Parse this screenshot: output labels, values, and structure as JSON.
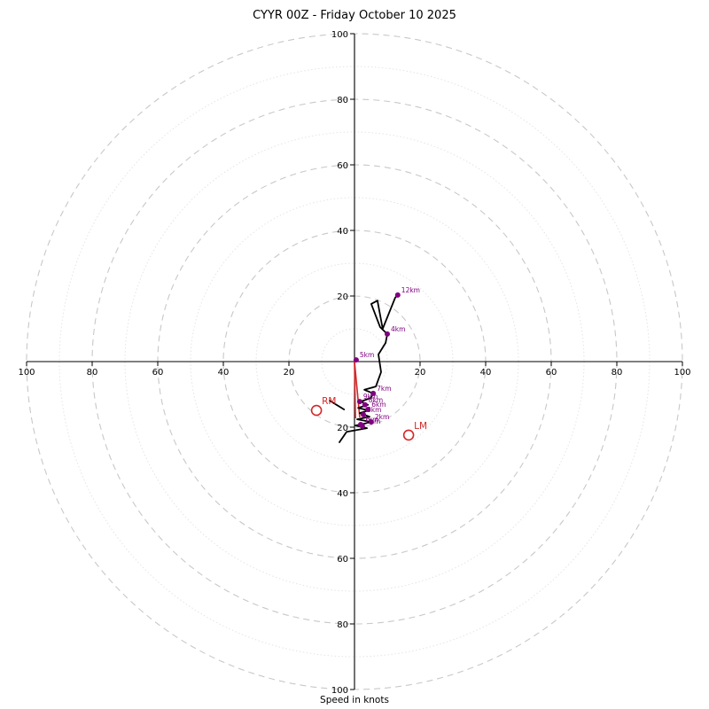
{
  "figure": {
    "title": "CYYR 00Z - Friday October 10 2025",
    "xlabel": "Speed in knots"
  },
  "chart_data": {
    "type": "line",
    "subtype": "hodograph",
    "units": "knots",
    "axis_ticks": [
      20,
      40,
      60,
      80,
      100
    ],
    "dashed_rings": [
      20,
      40,
      60,
      80,
      100
    ],
    "dotted_rings": [
      10,
      30,
      50,
      70,
      90
    ],
    "axis_range": [
      -100,
      100
    ],
    "colors": {
      "trace": "#000000",
      "altitude_marker": "#800080",
      "storm": "#d62728",
      "ring_dashed": "#c8c8c8",
      "ring_dotted": "#e4e4e4",
      "axis": "#000000"
    },
    "trace_uv": [
      [
        -4.6,
        -24.6
      ],
      [
        -2.4,
        -21.4
      ],
      [
        3.8,
        -20.3
      ],
      [
        0.3,
        -19.5
      ],
      [
        1.9,
        -19.2
      ],
      [
        5.1,
        -18.4
      ],
      [
        0.8,
        -17.6
      ],
      [
        4.6,
        -16.8
      ],
      [
        1.6,
        -15.7
      ],
      [
        4.3,
        -14.9
      ],
      [
        1.1,
        -14.1
      ],
      [
        4.1,
        -13.2
      ],
      [
        1.9,
        -12.2
      ],
      [
        4.9,
        -11.1
      ],
      [
        5.7,
        -9.7
      ],
      [
        3.0,
        -8.6
      ],
      [
        6.5,
        -7.6
      ],
      [
        8.1,
        -3.2
      ],
      [
        7.3,
        2.2
      ],
      [
        9.5,
        5.7
      ],
      [
        10.0,
        8.4
      ],
      [
        7.8,
        10.5
      ],
      [
        5.1,
        17.6
      ],
      [
        7.0,
        18.6
      ],
      [
        8.6,
        10.0
      ],
      [
        12.4,
        19.5
      ],
      [
        13.2,
        20.3
      ]
    ],
    "secondary_segment": [
      [
        -7.6,
        -11.9
      ],
      [
        -3.2,
        -14.6
      ]
    ],
    "altitude_markers": [
      {
        "label": "0km",
        "u": 2.4,
        "v": -19.7
      },
      {
        "label": "1km",
        "u": 1.9,
        "v": -19.2
      },
      {
        "label": "2km",
        "u": 5.1,
        "v": -18.4
      },
      {
        "label": "3km",
        "u": 2.7,
        "v": -16.2
      },
      {
        "label": "6km",
        "u": 4.1,
        "v": -14.6
      },
      {
        "label": "8km",
        "u": 3.2,
        "v": -13.2
      },
      {
        "label": "9km",
        "u": 1.6,
        "v": -12.2
      },
      {
        "label": "7km",
        "u": 5.7,
        "v": -9.7
      },
      {
        "label": "5km",
        "u": 0.5,
        "v": 0.5
      },
      {
        "label": "4km",
        "u": 10.0,
        "v": 8.4
      },
      {
        "label": "12km",
        "u": 13.2,
        "v": 20.3
      }
    ],
    "storm_markers": [
      {
        "label": "RM",
        "u": -11.6,
        "v": -14.9
      },
      {
        "label": "LM",
        "u": 16.5,
        "v": -22.4
      }
    ],
    "storm_lines": [
      [
        [
          0,
          0
        ],
        [
          0.3,
          -17.3
        ]
      ],
      [
        [
          0,
          0
        ],
        [
          1.6,
          -17.0
        ]
      ]
    ]
  }
}
